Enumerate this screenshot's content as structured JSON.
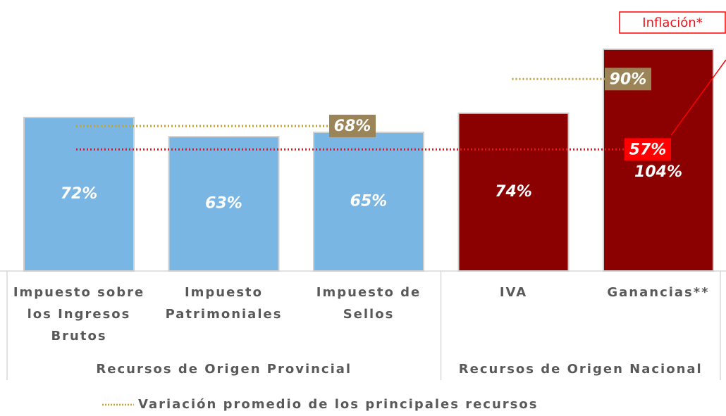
{
  "chart_data": {
    "type": "bar",
    "categories": [
      "Impuesto sobre\nlos Ingresos\nBrutos",
      "Impuesto\nPatrimoniales",
      "Impuesto de\nSellos",
      "IVA",
      "Ganancias**"
    ],
    "values": [
      72,
      63,
      65,
      74,
      104
    ],
    "value_labels": [
      "72%",
      "63%",
      "65%",
      "74%",
      "104%"
    ],
    "colors": [
      "#7ab6e3",
      "#7ab6e3",
      "#7ab6e3",
      "#8b0000",
      "#8b0000"
    ],
    "ylim": [
      0,
      120
    ],
    "groups": [
      {
        "label": "Recursos de Origen Provincial",
        "count": 3
      },
      {
        "label": "Recursos de Origen Nacional",
        "count": 2
      }
    ],
    "reference_lines": [
      {
        "value": 68,
        "label": "68%",
        "group": 0,
        "color": "#c9a227",
        "box_color": "#9c8459"
      },
      {
        "value": 90,
        "label": "90%",
        "group": 1,
        "color": "#c9a227",
        "box_color": "#9c8459"
      },
      {
        "value": 57,
        "label": "57%",
        "color": "#e8141b",
        "box_color": "#ff0000"
      }
    ],
    "annotation": "Inflación*",
    "legend": "Variación promedio de los principales recursos"
  }
}
